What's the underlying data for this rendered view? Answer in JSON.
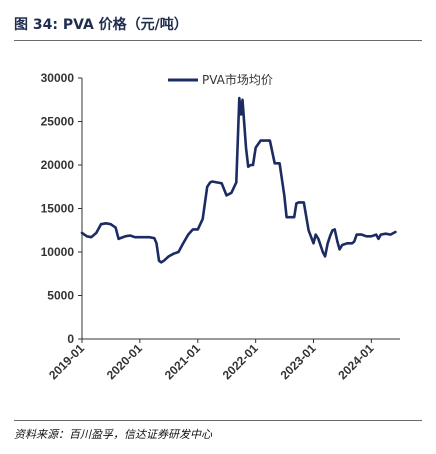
{
  "figure": {
    "title": "图 34:  PVA 价格（元/吨）",
    "source": "资料来源：百川盈孚，信达证券研发中心"
  },
  "colors": {
    "series": "#1c2c63",
    "axis": "#333333",
    "rule": "#6a6a6a"
  },
  "chart_data": {
    "type": "line",
    "title": "",
    "xlabel": "",
    "ylabel": "",
    "xlim": [
      "2019-01-01",
      "2024-06-30"
    ],
    "ylim": [
      0,
      30000
    ],
    "y_ticks": [
      0,
      5000,
      10000,
      15000,
      20000,
      25000,
      30000
    ],
    "x_ticks": [
      "2019-01",
      "2020-01",
      "2021-01",
      "2022-01",
      "2023-01",
      "2024-01"
    ],
    "grid": false,
    "legend": "top-center",
    "series": [
      {
        "name": "PVA市场均价",
        "x": [
          "2019-01-01",
          "2019-02-01",
          "2019-03-01",
          "2019-04-01",
          "2019-05-01",
          "2019-06-01",
          "2019-07-01",
          "2019-08-01",
          "2019-08-20",
          "2019-09-01",
          "2019-10-01",
          "2019-11-01",
          "2019-12-01",
          "2020-01-01",
          "2020-02-01",
          "2020-03-01",
          "2020-04-01",
          "2020-04-15",
          "2020-05-01",
          "2020-05-15",
          "2020-06-01",
          "2020-07-01",
          "2020-08-01",
          "2020-09-01",
          "2020-10-01",
          "2020-11-01",
          "2020-12-01",
          "2021-01-01",
          "2021-02-01",
          "2021-03-01",
          "2021-03-20",
          "2021-04-01",
          "2021-05-01",
          "2021-06-01",
          "2021-07-01",
          "2021-08-01",
          "2021-09-01",
          "2021-09-20",
          "2021-10-01",
          "2021-10-10",
          "2021-10-20",
          "2021-11-01",
          "2021-11-15",
          "2021-12-01",
          "2021-12-15",
          "2022-01-01",
          "2022-02-01",
          "2022-03-01",
          "2022-04-01",
          "2022-05-01",
          "2022-06-01",
          "2022-07-01",
          "2022-07-15",
          "2022-08-01",
          "2022-09-01",
          "2022-09-15",
          "2022-10-01",
          "2022-11-01",
          "2022-12-01",
          "2023-01-01",
          "2023-01-15",
          "2023-02-01",
          "2023-03-01",
          "2023-03-15",
          "2023-04-01",
          "2023-04-15",
          "2023-05-01",
          "2023-05-15",
          "2023-06-01",
          "2023-06-15",
          "2023-07-01",
          "2023-08-01",
          "2023-09-01",
          "2023-09-15",
          "2023-10-01",
          "2023-11-01",
          "2023-12-01",
          "2024-01-01",
          "2024-02-01",
          "2024-02-15",
          "2024-03-01",
          "2024-04-01",
          "2024-05-01",
          "2024-06-01"
        ],
        "y": [
          12200,
          11800,
          11700,
          12200,
          13200,
          13300,
          13200,
          12800,
          11500,
          11600,
          11800,
          11900,
          11700,
          11700,
          11700,
          11700,
          11600,
          11000,
          9000,
          8800,
          9000,
          9500,
          9800,
          10000,
          11000,
          12000,
          12600,
          12600,
          13800,
          17500,
          18000,
          18100,
          18000,
          17900,
          16500,
          16800,
          18000,
          27700,
          25800,
          27500,
          25000,
          22000,
          19800,
          20000,
          20000,
          22000,
          22800,
          22800,
          22800,
          20200,
          20200,
          16500,
          14000,
          14000,
          14000,
          15600,
          15700,
          15700,
          12500,
          11000,
          12000,
          11500,
          10000,
          9500,
          11000,
          11800,
          12500,
          12600,
          11200,
          10300,
          10800,
          11000,
          11000,
          11200,
          12000,
          12000,
          11800,
          11800,
          12000,
          11500,
          12000,
          12100,
          12000,
          12300
        ]
      }
    ]
  }
}
